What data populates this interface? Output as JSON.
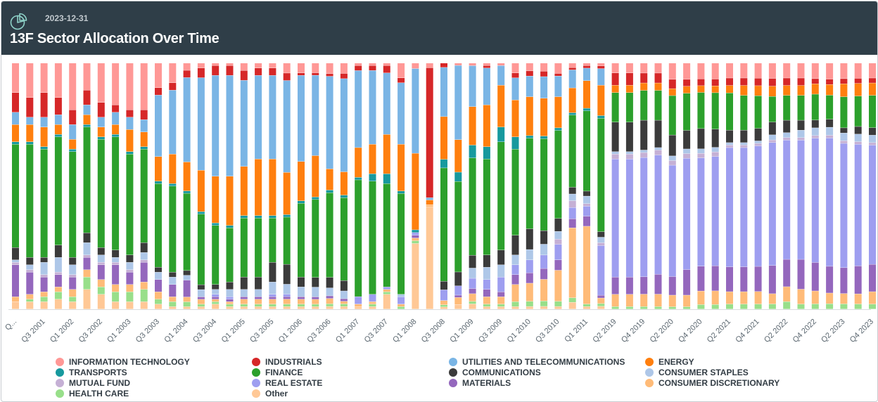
{
  "header": {
    "date": "2023-12-31",
    "title": "13F Sector Allocation Over Time",
    "icon": "pie-chart-icon"
  },
  "chart_data": {
    "type": "bar",
    "stacked": true,
    "normalized": true,
    "legend_position": "bottom",
    "grid": false,
    "categories": [
      "Q1 2001",
      "Q2 2001",
      "Q3 2001",
      "Q4 2001",
      "Q1 2002",
      "Q2 2002",
      "Q3 2002",
      "Q4 2002",
      "Q1 2003",
      "Q2 2003",
      "Q3 2003",
      "Q4 2003",
      "Q1 2004",
      "Q2 2004",
      "Q3 2004",
      "Q4 2004",
      "Q1 2005",
      "Q2 2005",
      "Q3 2005",
      "Q4 2005",
      "Q1 2006",
      "Q2 2006",
      "Q3 2006",
      "Q4 2006",
      "Q1 2007",
      "Q2 2007",
      "Q3 2007",
      "Q4 2007",
      "Q1 2008",
      "Q2 2008",
      "Q3 2008",
      "Q4 2008",
      "Q1 2009",
      "Q2 2009",
      "Q3 2009",
      "Q4 2009",
      "Q1 2010",
      "Q2 2010",
      "Q3 2010",
      "Q4 2010",
      "Q1 2011",
      "Q2 2011",
      "Q1 2019",
      "Q2 2019",
      "Q3 2019",
      "Q4 2019",
      "Q1 2020",
      "Q2 2020",
      "Q3 2020",
      "Q4 2020",
      "Q1 2021",
      "Q2 2021",
      "Q3 2021",
      "Q4 2021",
      "Q1 2022",
      "Q2 2022",
      "Q3 2022",
      "Q4 2022",
      "Q1 2023",
      "Q2 2023",
      "Q3 2023",
      "Q4 2023"
    ],
    "tick_labels": [
      "Q...",
      "Q3 2001",
      "Q1 2002",
      "Q3 2002",
      "Q1 2003",
      "Q3 2003",
      "Q1 2004",
      "Q3 2004",
      "Q1 2005",
      "Q3 2005",
      "Q1 2006",
      "Q3 2006",
      "Q1 2007",
      "Q3 2007",
      "Q1 2008",
      "Q3 2008",
      "Q1 2009",
      "Q3 2009",
      "Q1 2010",
      "Q3 2010",
      "Q1 2011",
      "Q2 2019",
      "Q4 2019",
      "Q2 2020",
      "Q4 2020",
      "Q2 2021",
      "Q4 2021",
      "Q2 2022",
      "Q4 2022",
      "Q2 2023",
      "Q4 2023"
    ],
    "series_order": [
      "Other",
      "HEALTH CARE",
      "CONSUMER DISCRETIONARY",
      "MATERIALS",
      "REAL ESTATE",
      "MUTUAL FUND",
      "CONSUMER STAPLES",
      "COMMUNICATIONS",
      "FINANCE",
      "TRANSPORTS",
      "ENERGY",
      "UTILITIES AND TELECOMMUNICATIONS",
      "INDUSTRIALS",
      "INFORMATION TECHNOLOGY"
    ],
    "colors": {
      "INFORMATION TECHNOLOGY": "#ff9896",
      "INDUSTRIALS": "#d62728",
      "UTILITIES AND TELECOMMUNICATIONS": "#7ab5e5",
      "ENERGY": "#ff7f0e",
      "TRANSPORTS": "#17999e",
      "FINANCE": "#2ca02c",
      "COMMUNICATIONS": "#3b3b3b",
      "CONSUMER STAPLES": "#aec7e8",
      "MUTUAL FUND": "#c5b0d5",
      "REAL ESTATE": "#9e9ef0",
      "MATERIALS": "#9467bd",
      "CONSUMER DISCRETIONARY": "#ffbb78",
      "HEALTH CARE": "#98df8a",
      "Other": "#ffc896"
    },
    "legend": [
      {
        "label": "INFORMATION TECHNOLOGY",
        "color": "#ff9896"
      },
      {
        "label": "INDUSTRIALS",
        "color": "#d62728"
      },
      {
        "label": "UTILITIES AND TELECOMMUNICATIONS",
        "color": "#7ab5e5"
      },
      {
        "label": "ENERGY",
        "color": "#ff7f0e"
      },
      {
        "label": "TRANSPORTS",
        "color": "#17999e"
      },
      {
        "label": "FINANCE",
        "color": "#2ca02c"
      },
      {
        "label": "COMMUNICATIONS",
        "color": "#3b3b3b"
      },
      {
        "label": "CONSUMER STAPLES",
        "color": "#aec7e8"
      },
      {
        "label": "MUTUAL FUND",
        "color": "#c5b0d5"
      },
      {
        "label": "REAL ESTATE",
        "color": "#9e9ef0"
      },
      {
        "label": "MATERIALS",
        "color": "#9467bd"
      },
      {
        "label": "CONSUMER DISCRETIONARY",
        "color": "#ffbb78"
      },
      {
        "label": "HEALTH CARE",
        "color": "#98df8a"
      },
      {
        "label": "Other",
        "color": "#ffc896"
      }
    ],
    "series": [
      {
        "name": "Other",
        "values": [
          3,
          3,
          3,
          4,
          3,
          8,
          6,
          3,
          3,
          3,
          2,
          1,
          1,
          1,
          2,
          1,
          1,
          1,
          1,
          1,
          1,
          1,
          1,
          1,
          1,
          1,
          6,
          0,
          24,
          44,
          1,
          2,
          2,
          1,
          1,
          1,
          1,
          1,
          1,
          3,
          1,
          1,
          0,
          0,
          0,
          0,
          0,
          0,
          0,
          0,
          0,
          0,
          0,
          0,
          0,
          0,
          0,
          0,
          0,
          0,
          0,
          0
        ]
      },
      {
        "name": "HEALTH CARE",
        "values": [
          0,
          1,
          2,
          3,
          2,
          5,
          3,
          4,
          4,
          5,
          2,
          2,
          2,
          1,
          1,
          1,
          1,
          1,
          1,
          1,
          1,
          1,
          1,
          1,
          0,
          1,
          1,
          1,
          1,
          0,
          1,
          0,
          1,
          1,
          1,
          2,
          2,
          2,
          2,
          2,
          1,
          1,
          1,
          1,
          1,
          1,
          1,
          1,
          2,
          2,
          2,
          2,
          2,
          2,
          3,
          2,
          2,
          2,
          2,
          2,
          2,
          2
        ]
      },
      {
        "name": "CONSUMER DISCRETIONARY",
        "values": [
          2,
          2,
          2,
          2,
          3,
          3,
          3,
          3,
          3,
          3,
          3,
          2,
          2,
          2,
          1,
          1,
          2,
          2,
          2,
          2,
          2,
          2,
          2,
          1,
          1,
          1,
          1,
          1,
          1,
          1,
          2,
          3,
          3,
          3,
          3,
          7,
          7,
          8,
          12,
          31,
          31,
          2,
          5,
          5,
          5,
          5,
          5,
          5,
          6,
          6,
          5,
          5,
          5,
          4,
          6,
          6,
          5,
          4,
          4,
          4,
          5,
          5
        ]
      },
      {
        "name": "MATERIALS",
        "values": [
          13,
          9,
          6,
          5,
          5,
          5,
          6,
          8,
          5,
          8,
          5,
          5,
          7,
          1,
          1,
          1,
          1,
          1,
          1,
          1,
          1,
          1,
          1,
          1,
          0,
          0,
          0,
          0,
          1,
          0,
          0,
          1,
          2,
          3,
          2,
          4,
          4,
          4,
          4,
          4,
          4,
          1,
          7,
          7,
          7,
          8,
          8,
          11,
          11,
          11,
          10,
          10,
          10,
          11,
          11,
          12,
          11,
          10,
          10,
          11,
          11,
          9
        ]
      },
      {
        "name": "REAL ESTATE",
        "values": [
          0,
          0,
          0,
          0,
          0,
          0,
          0,
          0,
          0,
          0,
          0,
          0,
          0,
          0,
          1,
          1,
          0,
          0,
          1,
          1,
          0,
          0,
          0,
          0,
          3,
          3,
          1,
          3,
          1,
          0,
          5,
          4,
          4,
          4,
          6,
          4,
          5,
          5,
          6,
          5,
          4,
          18,
          48,
          48,
          48,
          48,
          48,
          48,
          48,
          48,
          48,
          48,
          48,
          48,
          48,
          48,
          48,
          48,
          48,
          48,
          48,
          48
        ]
      },
      {
        "name": "MUTUAL FUND",
        "values": [
          1,
          1,
          1,
          1,
          1,
          1,
          1,
          1,
          1,
          1,
          0,
          0,
          0,
          0,
          0,
          0,
          0,
          0,
          0,
          0,
          0,
          0,
          0,
          0,
          0,
          0,
          0,
          0,
          0,
          0,
          0,
          0,
          0,
          0,
          0,
          0,
          0,
          0,
          2,
          3,
          1,
          1,
          2,
          2,
          2,
          2,
          2,
          2,
          2,
          2,
          1,
          1,
          1,
          1,
          1,
          1,
          1,
          1,
          1,
          1,
          1,
          1
        ]
      },
      {
        "name": "CONSUMER STAPLES",
        "values": [
          1,
          2,
          5,
          6,
          4,
          5,
          3,
          2,
          3,
          3,
          3,
          3,
          2,
          3,
          2,
          3,
          3,
          3,
          5,
          4,
          4,
          4,
          3,
          3,
          0,
          0,
          0,
          1,
          0,
          0,
          0,
          0,
          4,
          5,
          5,
          4,
          4,
          4,
          3,
          3,
          3,
          2,
          1,
          1,
          1,
          1,
          2,
          2,
          2,
          2,
          1,
          1,
          1,
          2,
          2,
          3,
          3,
          3,
          3,
          3,
          3,
          3
        ]
      },
      {
        "name": "COMMUNICATIONS",
        "values": [
          5,
          3,
          2,
          5,
          3,
          4,
          3,
          3,
          3,
          4,
          2,
          2,
          2,
          2,
          2,
          3,
          5,
          5,
          8,
          8,
          4,
          4,
          4,
          4,
          0,
          0,
          0,
          0,
          0,
          0,
          4,
          6,
          5,
          5,
          6,
          8,
          8,
          5,
          5,
          3,
          2,
          2,
          12,
          12,
          12,
          11,
          9,
          8,
          9,
          8,
          5,
          5,
          5,
          5,
          5,
          4,
          3,
          3,
          2,
          3,
          3,
          2
        ]
      },
      {
        "name": "FINANCE",
        "values": [
          42,
          46,
          44,
          44,
          43,
          43,
          44,
          46,
          41,
          38,
          34,
          35,
          32,
          29,
          24,
          22,
          24,
          24,
          18,
          19,
          30,
          32,
          32,
          32,
          47,
          46,
          42,
          41,
          0,
          0,
          53,
          39,
          38,
          39,
          44,
          35,
          35,
          34,
          34,
          32,
          32,
          41,
          12,
          12,
          12,
          12,
          17,
          16,
          16,
          16,
          15,
          14,
          13,
          10,
          10,
          10,
          10,
          9,
          12,
          12,
          13,
          13
        ]
      },
      {
        "name": "TRANSPORTS",
        "values": [
          1,
          1,
          1,
          1,
          1,
          1,
          1,
          1,
          1,
          1,
          1,
          1,
          1,
          1,
          1,
          1,
          1,
          1,
          1,
          1,
          1,
          1,
          1,
          1,
          1,
          3,
          4,
          1,
          1,
          0,
          4,
          4,
          5,
          5,
          6,
          5,
          1,
          1,
          1,
          1,
          1,
          1,
          0,
          0,
          0,
          0,
          0,
          0,
          0,
          0,
          0,
          0,
          0,
          0,
          0,
          0,
          0,
          0,
          0,
          0,
          0,
          0
        ]
      },
      {
        "name": "ENERGY",
        "values": [
          7,
          7,
          8,
          4,
          4,
          4,
          4,
          4,
          9,
          6,
          10,
          12,
          12,
          17,
          19,
          20,
          20,
          23,
          23,
          17,
          16,
          17,
          8,
          9,
          12,
          12,
          16,
          19,
          28,
          2,
          20,
          14,
          15,
          17,
          17,
          15,
          15,
          14,
          12,
          11,
          11,
          11,
          3,
          3,
          3,
          3,
          3,
          3,
          3,
          3,
          3,
          4,
          4,
          4,
          4,
          4,
          4,
          4,
          5,
          5,
          5,
          5
        ]
      },
      {
        "name": "UTILITIES AND TELECOMMUNICATIONS",
        "values": [
          5,
          3,
          4,
          4,
          6,
          4,
          4,
          5,
          5,
          5,
          25,
          26,
          35,
          38,
          41,
          41,
          35,
          34,
          34,
          37,
          35,
          33,
          35,
          36,
          31,
          30,
          25,
          25,
          31,
          1,
          23,
          32,
          16,
          15,
          8,
          9,
          8,
          8,
          8,
          8,
          5,
          6,
          0,
          0,
          0,
          0,
          0,
          0,
          0,
          0,
          0,
          0,
          0,
          0,
          0,
          0,
          0,
          0,
          0,
          0,
          0,
          0
        ]
      },
      {
        "name": "INDUSTRIALS",
        "values": [
          8,
          8,
          10,
          7,
          6,
          6,
          6,
          3,
          3,
          4,
          3,
          3,
          3,
          4,
          4,
          4,
          4,
          3,
          3,
          3,
          1,
          1,
          1,
          2,
          2,
          2,
          3,
          2,
          0,
          56,
          2,
          0,
          0,
          1,
          0,
          2,
          2,
          2,
          1,
          1,
          1,
          1,
          5,
          5,
          4,
          4,
          4,
          3,
          3,
          3,
          3,
          3,
          3,
          3,
          3,
          3,
          2,
          2,
          2,
          2,
          2,
          2
        ]
      },
      {
        "name": "INFORMATION TECHNOLOGY",
        "values": [
          12,
          14,
          12,
          14,
          19,
          11,
          16,
          17,
          19,
          19,
          10,
          8,
          3,
          2,
          1,
          1,
          3,
          2,
          2,
          4,
          4,
          4,
          4,
          4,
          1,
          1,
          1,
          6,
          2,
          2,
          0,
          1,
          1,
          1,
          1,
          4,
          3,
          3,
          4,
          2,
          1,
          1,
          4,
          4,
          4,
          4,
          7,
          7,
          7,
          7,
          6,
          6,
          6,
          6,
          6,
          6,
          6,
          6,
          6,
          6,
          6,
          6
        ]
      }
    ]
  }
}
